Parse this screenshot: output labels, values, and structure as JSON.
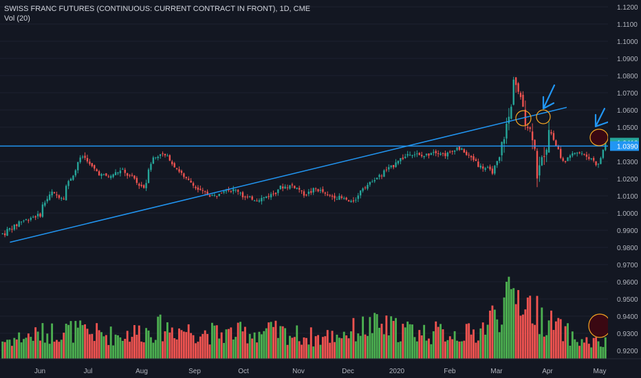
{
  "chart_data": {
    "type": "candlestick",
    "title": "SWISS FRANC FUTURES (CONTINUOUS: CURRENT CONTRACT IN FRONT), 1D, CME",
    "volume_label": "Vol (20)",
    "ylim": [
      0.913,
      1.124
    ],
    "y_ticks": [
      "1.1200",
      "1.1100",
      "1.1000",
      "1.0900",
      "1.0800",
      "1.0700",
      "1.0600",
      "1.0500",
      "1.0300",
      "1.0200",
      "1.0100",
      "1.0000",
      "0.9900",
      "0.9800",
      "0.9700",
      "0.9600",
      "0.9500",
      "0.9400",
      "0.9300",
      "0.9200"
    ],
    "x_ticks": [
      "Jun",
      "Jul",
      "Aug",
      "Sep",
      "Oct",
      "Nov",
      "Dec",
      "2020",
      "Feb",
      "Mar",
      "Apr",
      "May"
    ],
    "price_labels": [
      {
        "text": "1.0410",
        "value": 1.041,
        "color": "#26a69a"
      },
      {
        "text": "1.0390",
        "value": 1.039,
        "color": "#2196f3"
      }
    ],
    "horizontal_line": {
      "value": 1.039,
      "color": "#2196f3"
    },
    "trend_line": {
      "color": "#2196f3",
      "from": {
        "x": "2019-05-09",
        "y": 0.983
      },
      "to": {
        "x": "2020-04-10",
        "y": 1.0615
      }
    },
    "annotations": {
      "circles": 3,
      "arrows": 2,
      "circle_color": "#f5a623",
      "arrow_color": "#2196f3"
    },
    "colors": {
      "up": "#26a69a",
      "down": "#ef5350",
      "vol_up": "#4caf50",
      "vol_down": "#ef5350",
      "background": "#131722"
    },
    "price_path": [
      [
        "2019-05-10",
        0.988
      ],
      [
        "2019-05-20",
        0.995
      ],
      [
        "2019-05-31",
        0.999
      ],
      [
        "2019-06-07",
        1.012
      ],
      [
        "2019-06-14",
        1.009
      ],
      [
        "2019-06-21",
        1.025
      ],
      [
        "2019-06-26",
        1.033
      ],
      [
        "2019-07-01",
        1.028
      ],
      [
        "2019-07-05",
        1.023
      ],
      [
        "2019-07-12",
        1.021
      ],
      [
        "2019-07-19",
        1.025
      ],
      [
        "2019-07-26",
        1.02
      ],
      [
        "2019-08-01",
        1.015
      ],
      [
        "2019-08-07",
        1.032
      ],
      [
        "2019-08-12",
        1.035
      ],
      [
        "2019-08-19",
        1.029
      ],
      [
        "2019-08-23",
        1.023
      ],
      [
        "2019-08-30",
        1.017
      ],
      [
        "2019-09-05",
        1.012
      ],
      [
        "2019-09-12",
        1.01
      ],
      [
        "2019-09-19",
        1.014
      ],
      [
        "2019-09-26",
        1.013
      ],
      [
        "2019-10-01",
        1.009
      ],
      [
        "2019-10-08",
        1.008
      ],
      [
        "2019-10-15",
        1.01
      ],
      [
        "2019-10-22",
        1.015
      ],
      [
        "2019-10-29",
        1.016
      ],
      [
        "2019-11-05",
        1.011
      ],
      [
        "2019-11-12",
        1.014
      ],
      [
        "2019-11-19",
        1.01
      ],
      [
        "2019-11-26",
        1.009
      ],
      [
        "2019-12-03",
        1.006
      ],
      [
        "2019-12-10",
        1.015
      ],
      [
        "2019-12-17",
        1.02
      ],
      [
        "2019-12-24",
        1.025
      ],
      [
        "2019-12-31",
        1.031
      ],
      [
        "2020-01-07",
        1.035
      ],
      [
        "2020-01-14",
        1.033
      ],
      [
        "2020-01-21",
        1.036
      ],
      [
        "2020-01-28",
        1.034
      ],
      [
        "2020-02-04",
        1.038
      ],
      [
        "2020-02-11",
        1.033
      ],
      [
        "2020-02-18",
        1.027
      ],
      [
        "2020-02-25",
        1.024
      ],
      [
        "2020-03-02",
        1.04
      ],
      [
        "2020-03-06",
        1.061
      ],
      [
        "2020-03-09",
        1.08
      ],
      [
        "2020-03-12",
        1.065
      ],
      [
        "2020-03-16",
        1.054
      ],
      [
        "2020-03-19",
        1.045
      ],
      [
        "2020-03-23",
        1.022
      ],
      [
        "2020-03-26",
        1.035
      ],
      [
        "2020-03-30",
        1.05
      ],
      [
        "2020-04-02",
        1.039
      ],
      [
        "2020-04-07",
        1.03
      ],
      [
        "2020-04-14",
        1.036
      ],
      [
        "2020-04-21",
        1.033
      ],
      [
        "2020-04-28",
        1.028
      ],
      [
        "2020-05-01",
        1.041
      ]
    ],
    "volume_path": [
      [
        "2019-05-10",
        0.22
      ],
      [
        "2019-06-15",
        0.35
      ],
      [
        "2019-07-15",
        0.28
      ],
      [
        "2019-08-15",
        0.38
      ],
      [
        "2019-09-15",
        0.3
      ],
      [
        "2019-10-15",
        0.33
      ],
      [
        "2019-11-15",
        0.25
      ],
      [
        "2019-12-15",
        0.4
      ],
      [
        "2020-01-15",
        0.32
      ],
      [
        "2020-02-15",
        0.3
      ],
      [
        "2020-03-10",
        0.8
      ],
      [
        "2020-03-25",
        0.5
      ],
      [
        "2020-04-15",
        0.22
      ],
      [
        "2020-05-01",
        0.18
      ]
    ]
  }
}
